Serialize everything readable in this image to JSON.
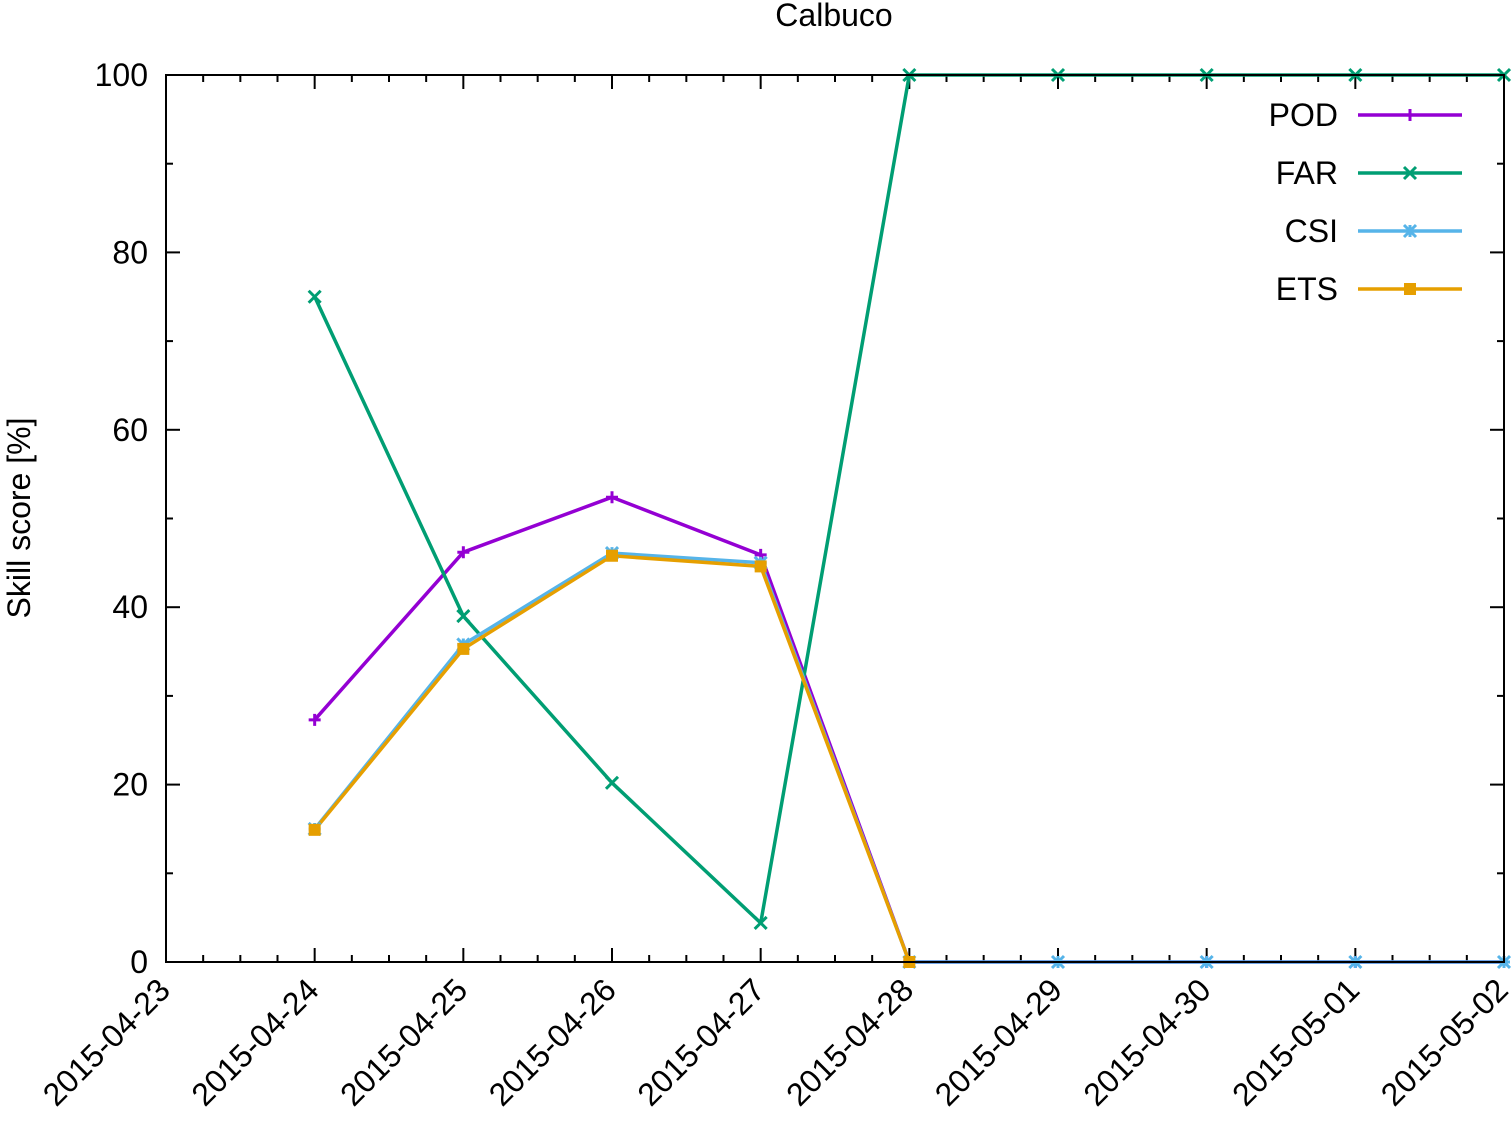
{
  "chart_data": {
    "type": "line",
    "title": "Calbuco",
    "xlabel": "",
    "ylabel": "Skill score [%]",
    "x": [
      "2015-04-24",
      "2015-04-25",
      "2015-04-26",
      "2015-04-27",
      "2015-04-28",
      "2015-04-29",
      "2015-04-30",
      "2015-05-01",
      "2015-05-02"
    ],
    "x_ticks": [
      "2015-04-23",
      "2015-04-24",
      "2015-04-25",
      "2015-04-26",
      "2015-04-27",
      "2015-04-28",
      "2015-04-29",
      "2015-04-30",
      "2015-05-01",
      "2015-05-02"
    ],
    "xlim": [
      "2015-04-23",
      "2015-05-02"
    ],
    "ylim": [
      0,
      100
    ],
    "y_ticks": [
      0,
      20,
      40,
      60,
      80,
      100
    ],
    "grid": false,
    "legend_position": "top-right",
    "series": [
      {
        "name": "POD",
        "color": "#9400d3",
        "marker": "plus",
        "values": [
          27.3,
          46.2,
          52.4,
          45.9,
          0,
          0,
          0,
          0,
          0
        ]
      },
      {
        "name": "FAR",
        "color": "#009e73",
        "marker": "cross",
        "values": [
          75.0,
          39.0,
          20.2,
          4.4,
          100,
          100,
          100,
          100,
          100
        ]
      },
      {
        "name": "CSI",
        "color": "#56b4e9",
        "marker": "star",
        "values": [
          15.0,
          35.8,
          46.1,
          45.0,
          0,
          0,
          0,
          0,
          0
        ]
      },
      {
        "name": "ETS",
        "color": "#e69f00",
        "marker": "square",
        "values": [
          14.9,
          35.3,
          45.8,
          44.6,
          0,
          null,
          null,
          null,
          null
        ]
      }
    ]
  }
}
